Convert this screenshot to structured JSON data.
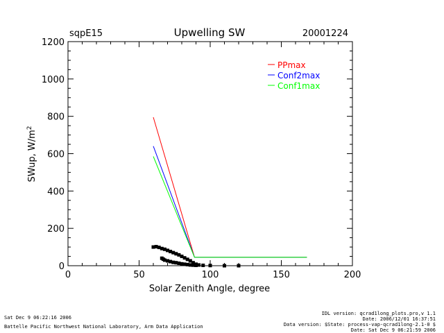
{
  "header": {
    "site": "sqpE15",
    "title": "Upwelling SW",
    "date": "20001224"
  },
  "footer": {
    "left_line1": "Sat Dec  9 06:22:16 2006",
    "left_line2": "Battelle Pacific Northwest National Laboratory, Arm Data Application",
    "right_line1": "IDL version: qcrad1long_plots.pro,v 1.1",
    "right_line2": "Date: 2006/12/01 16:37:51",
    "right_line3": "Data version: $State: process-vap-qcrad1long-2.1-0 $",
    "right_line4": "Date: Sat Dec  9 06:21:59 2006"
  },
  "chart_data": {
    "type": "line",
    "title": "Upwelling SW",
    "xlabel": "Solar Zenith Angle, degree",
    "ylabel": "SWup, W/m",
    "ylabel_superscript": "2",
    "xlim": [
      0,
      200
    ],
    "ylim": [
      0,
      1200
    ],
    "xticks": [
      0,
      50,
      100,
      150,
      200
    ],
    "yticks": [
      0,
      200,
      400,
      600,
      800,
      1000,
      1200
    ],
    "legend_position": "top-right",
    "series": [
      {
        "name": "PPmax",
        "color": "#ff0000",
        "x": [
          60,
          89,
          168
        ],
        "y": [
          795,
          45,
          45
        ]
      },
      {
        "name": "Conf2max",
        "color": "#0000ff",
        "x": [
          60,
          89,
          168
        ],
        "y": [
          640,
          45,
          45
        ]
      },
      {
        "name": "Conf1max",
        "color": "#00ff00",
        "x": [
          60,
          89,
          168
        ],
        "y": [
          585,
          45,
          45
        ]
      }
    ],
    "measurements": {
      "color": "#000000",
      "points": [
        [
          60,
          100
        ],
        [
          62,
          102
        ],
        [
          64,
          98
        ],
        [
          66,
          92
        ],
        [
          68,
          88
        ],
        [
          70,
          82
        ],
        [
          72,
          76
        ],
        [
          74,
          70
        ],
        [
          76,
          64
        ],
        [
          78,
          58
        ],
        [
          80,
          50
        ],
        [
          82,
          42
        ],
        [
          84,
          34
        ],
        [
          86,
          26
        ],
        [
          88,
          16
        ],
        [
          90,
          8
        ],
        [
          92,
          4
        ],
        [
          95,
          2
        ],
        [
          100,
          1
        ],
        [
          110,
          0
        ],
        [
          120,
          0
        ],
        [
          66,
          40
        ],
        [
          67,
          35
        ],
        [
          68,
          30
        ],
        [
          70,
          26
        ],
        [
          72,
          22
        ],
        [
          74,
          18
        ],
        [
          76,
          16
        ],
        [
          78,
          13
        ],
        [
          80,
          10
        ],
        [
          82,
          8
        ],
        [
          84,
          6
        ],
        [
          86,
          4
        ],
        [
          88,
          3
        ],
        [
          90,
          2
        ]
      ]
    }
  }
}
